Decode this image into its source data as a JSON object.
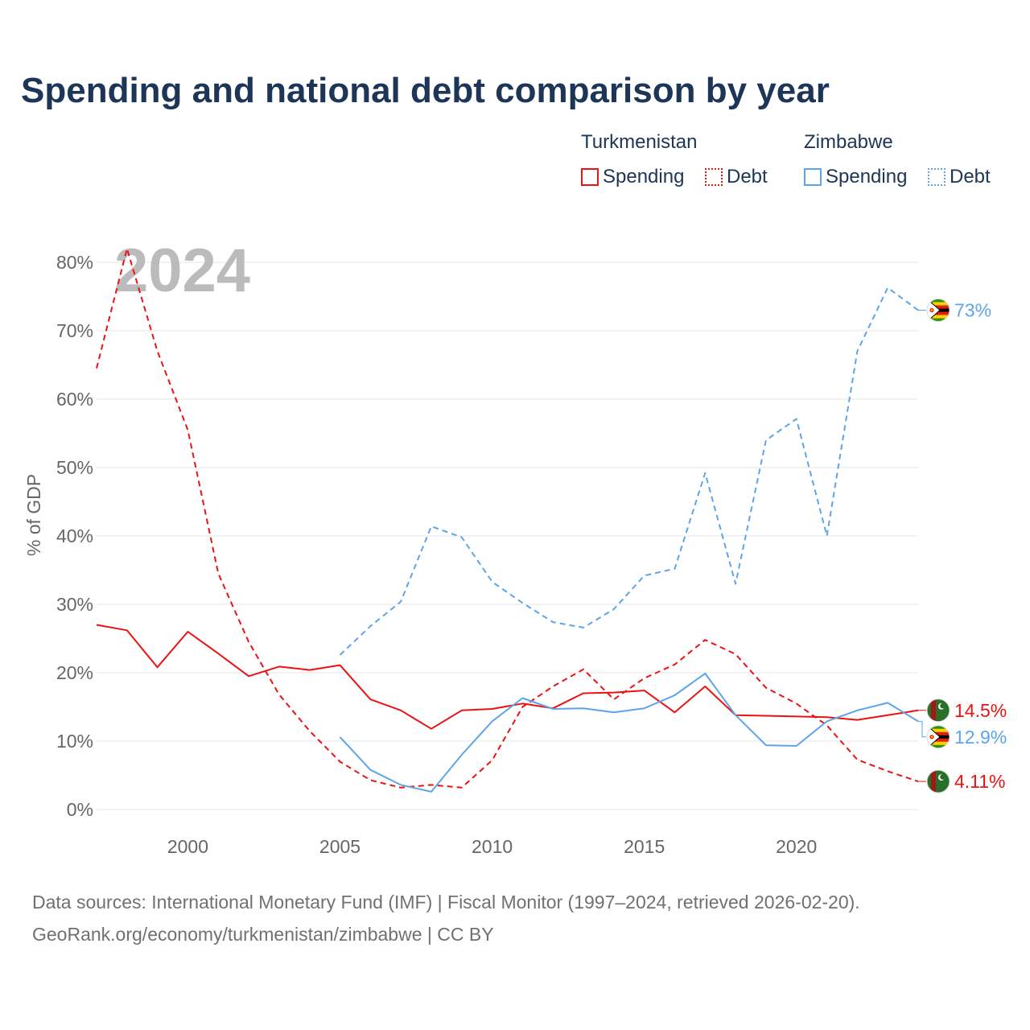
{
  "title": "Spending and national debt comparison by year",
  "legend": {
    "country1": "Turkmenistan",
    "country2": "Zimbabwe",
    "spending": "Spending",
    "debt": "Debt"
  },
  "colors": {
    "turkmenistan": "#ee1111",
    "zimbabwe": "#5da5e8",
    "title": "#1d3557",
    "grid": "#e6e6e6",
    "axis_text": "#666666",
    "year_watermark": "#bbbbbb"
  },
  "source": {
    "line1": "Data sources: International Monetary Fund (IMF) | Fiscal Monitor (1997–2024, retrieved 2026-02-20).",
    "line2": "GeoRank.org/economy/turkmenistan/zimbabwe | CC BY"
  },
  "chart_data": {
    "type": "line",
    "title": "Spending and national debt comparison by year",
    "xlabel": "",
    "ylabel": "% of GDP",
    "xlim": [
      1997,
      2024
    ],
    "ylim": [
      0,
      80
    ],
    "x_ticks": [
      2000,
      2005,
      2010,
      2015,
      2020
    ],
    "y_ticks": [
      0,
      10,
      20,
      30,
      40,
      50,
      60,
      70,
      80
    ],
    "y_tick_labels": [
      "0%",
      "10%",
      "20%",
      "30%",
      "40%",
      "50%",
      "60%",
      "70%",
      "80%"
    ],
    "grid": true,
    "year_label": "2024",
    "series": [
      {
        "name": "Turkmenistan Spending",
        "country": "Turkmenistan",
        "style": "solid",
        "x": [
          1997,
          1998,
          1999,
          2000,
          2001,
          2002,
          2003,
          2004,
          2005,
          2006,
          2007,
          2008,
          2009,
          2010,
          2011,
          2012,
          2013,
          2014,
          2015,
          2016,
          2017,
          2018,
          2019,
          2020,
          2021,
          2022,
          2023,
          2024
        ],
        "values": [
          27.0,
          26.2,
          20.8,
          26.0,
          22.8,
          19.5,
          20.9,
          20.4,
          21.1,
          16.1,
          14.5,
          11.8,
          14.5,
          14.7,
          15.5,
          14.8,
          17.0,
          17.1,
          17.4,
          14.2,
          18.0,
          13.8,
          13.7,
          13.6,
          13.5,
          13.1,
          13.8,
          14.5
        ],
        "end_label": "14.5%"
      },
      {
        "name": "Turkmenistan Debt",
        "country": "Turkmenistan",
        "style": "dashed",
        "x": [
          1997,
          1998,
          1999,
          2000,
          2001,
          2002,
          2003,
          2004,
          2005,
          2006,
          2007,
          2008,
          2009,
          2010,
          2011,
          2012,
          2013,
          2014,
          2015,
          2016,
          2017,
          2018,
          2019,
          2020,
          2021,
          2022,
          2023,
          2024
        ],
        "values": [
          64.5,
          82.0,
          67.0,
          55.5,
          34.5,
          24.5,
          16.8,
          11.5,
          7.0,
          4.3,
          3.2,
          3.6,
          3.2,
          7.2,
          15.0,
          18.0,
          20.5,
          16.1,
          19.2,
          21.2,
          24.8,
          22.7,
          17.8,
          15.5,
          12.3,
          7.3,
          5.6,
          4.11
        ],
        "end_label": "4.11%"
      },
      {
        "name": "Zimbabwe Spending",
        "country": "Zimbabwe",
        "style": "solid",
        "x": [
          2005,
          2006,
          2007,
          2008,
          2009,
          2010,
          2011,
          2012,
          2013,
          2014,
          2015,
          2016,
          2017,
          2018,
          2019,
          2020,
          2021,
          2022,
          2023,
          2024
        ],
        "values": [
          10.6,
          5.8,
          3.6,
          2.6,
          8.0,
          12.9,
          16.3,
          14.7,
          14.8,
          14.2,
          14.8,
          16.7,
          19.9,
          13.8,
          9.4,
          9.3,
          12.9,
          14.5,
          15.6,
          12.9
        ],
        "end_label": "12.9%"
      },
      {
        "name": "Zimbabwe Debt",
        "country": "Zimbabwe",
        "style": "dashed",
        "x": [
          2005,
          2006,
          2007,
          2008,
          2009,
          2010,
          2011,
          2012,
          2013,
          2014,
          2015,
          2016,
          2017,
          2018,
          2019,
          2020,
          2021,
          2022,
          2023,
          2024
        ],
        "values": [
          22.6,
          26.8,
          30.4,
          41.4,
          39.8,
          33.3,
          30.2,
          27.4,
          26.6,
          29.3,
          34.2,
          35.2,
          49.2,
          33.0,
          54.0,
          57.1,
          40.0,
          67.0,
          76.3,
          73.0
        ],
        "end_label": "73%"
      }
    ]
  }
}
